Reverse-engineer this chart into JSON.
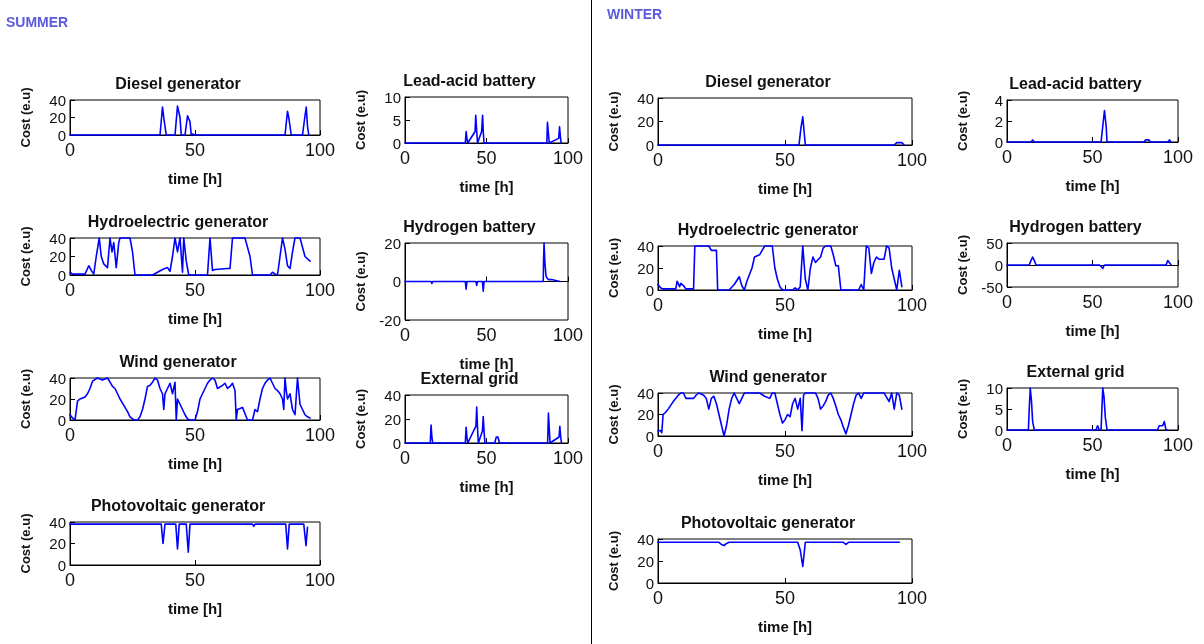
{
  "chart_data": [
    {
      "type": "line",
      "title": "Diesel generator",
      "xlabel": "time [h]",
      "ylabel": "Cost (e.u)",
      "annotations": [
        "SUMMER"
      ],
      "color": "#0000ff",
      "xlim": [
        0,
        100
      ],
      "xticks": [
        0,
        50,
        100
      ],
      "ylim": [
        0,
        40
      ],
      "yticks": [
        0,
        20,
        40
      ],
      "x": [
        0,
        36,
        37,
        37.5,
        38.5,
        42,
        43,
        44,
        44.5,
        46,
        47,
        48,
        48.5,
        49,
        50,
        86,
        87,
        87.5,
        88.5,
        93,
        94,
        94.5,
        95,
        95.5
      ],
      "values": [
        0,
        0,
        32,
        20,
        0,
        0,
        33,
        20,
        0,
        0,
        22,
        15,
        0,
        1,
        0,
        0,
        27,
        20,
        0,
        0,
        22,
        32,
        10,
        0
      ]
    },
    {
      "type": "line",
      "title": "Lead-acid battery",
      "xlabel": "time [h]",
      "ylabel": "Cost (e.u)",
      "color": "#0000ff",
      "xlim": [
        0,
        100
      ],
      "xticks": [
        0,
        50,
        100
      ],
      "ylim": [
        0,
        10
      ],
      "yticks": [
        0,
        5,
        10
      ],
      "x": [
        0,
        37,
        37.5,
        38,
        38.5,
        43,
        43.4,
        44,
        44.5,
        47,
        47.6,
        48,
        48.5,
        87,
        87.4,
        88,
        88.5,
        94.3,
        94.8,
        95.3,
        95.8
      ],
      "values": [
        0,
        0,
        2.5,
        1,
        0,
        2.5,
        6,
        2.5,
        0,
        2.5,
        6,
        2.5,
        0,
        0,
        4.5,
        2,
        0,
        1,
        3.5,
        1.5,
        0
      ]
    },
    {
      "type": "line",
      "title": "Hydroelectric generator",
      "xlabel": "time [h]",
      "ylabel": "Cost (e.u)",
      "color": "#0000ff",
      "xlim": [
        0,
        100
      ],
      "xticks": [
        0,
        50,
        100
      ],
      "ylim": [
        0,
        40
      ],
      "yticks": [
        0,
        20,
        40
      ],
      "x": [
        0,
        1,
        6,
        7.5,
        8.5,
        9.5,
        10.5,
        11.7,
        12.5,
        13.5,
        15,
        16,
        16.8,
        17.5,
        18.5,
        19.5,
        20,
        24,
        25,
        26,
        33,
        37,
        39,
        40,
        41,
        42,
        43,
        44,
        45,
        45.5,
        46.5,
        47.5,
        55,
        56,
        57,
        58,
        63,
        64,
        65,
        66,
        70,
        71,
        72,
        73,
        80,
        81,
        82,
        83,
        84,
        85,
        86,
        87,
        88,
        89,
        90,
        92,
        93,
        94,
        96
      ],
      "values": [
        3,
        1,
        1,
        10,
        5,
        1,
        20,
        40,
        20,
        12,
        8,
        40,
        25,
        35,
        8,
        35,
        40,
        40,
        25,
        0,
        0,
        6,
        8,
        4,
        20,
        40,
        25,
        40,
        3,
        40,
        15,
        0,
        0,
        40,
        5,
        6,
        7,
        7,
        40,
        40,
        40,
        30,
        20,
        0,
        0,
        3,
        1,
        0,
        20,
        40,
        28,
        10,
        7,
        25,
        40,
        40,
        30,
        20,
        15
      ]
    },
    {
      "type": "line",
      "title": "Hydrogen battery",
      "xlabel": "time [h]",
      "ylabel": "Cost (e.u)",
      "color": "#0000ff",
      "xlim": [
        0,
        100
      ],
      "xticks": [
        0,
        50,
        100
      ],
      "ylim": [
        -20,
        20
      ],
      "yticks": [
        -20,
        0,
        20
      ],
      "x": [
        0,
        16,
        16.5,
        17,
        37,
        37.5,
        38,
        43.5,
        44,
        44.5,
        47.5,
        48,
        48.5,
        84.8,
        85,
        85.3,
        85.8,
        86.5,
        87,
        88,
        90,
        95
      ],
      "values": [
        0,
        0,
        -1,
        0,
        0,
        -4,
        0,
        0,
        -2,
        0,
        0,
        -5,
        0,
        0,
        10,
        20,
        10,
        3,
        2,
        1,
        1,
        0
      ]
    },
    {
      "type": "line",
      "title": "Wind generator",
      "xlabel": "time [h]",
      "ylabel": "Cost (e.u)",
      "color": "#0000ff",
      "xlim": [
        0,
        100
      ],
      "xticks": [
        0,
        50,
        100
      ],
      "ylim": [
        0,
        40
      ],
      "yticks": [
        0,
        20,
        40
      ],
      "x": [
        0,
        1,
        2,
        3,
        4,
        6,
        7,
        8,
        9,
        11,
        13,
        15,
        16,
        17,
        18,
        19,
        20,
        21,
        22,
        23,
        24,
        25,
        26,
        27,
        28,
        29,
        30,
        31,
        32,
        33,
        34,
        35,
        36,
        37,
        37.5,
        38,
        39,
        40,
        41,
        42,
        42.5,
        43,
        44,
        45,
        46,
        47,
        48,
        50,
        51,
        52,
        53,
        54,
        55,
        56,
        57,
        58,
        59,
        61,
        62,
        63,
        64,
        65,
        66,
        66.5,
        67,
        69,
        70,
        71,
        73,
        74,
        75,
        76,
        77,
        78,
        79,
        80,
        81,
        82,
        83,
        84,
        85,
        85.5,
        86,
        86.5,
        87,
        88,
        89,
        90,
        91,
        92,
        93,
        94,
        95,
        96
      ],
      "values": [
        5,
        2,
        0,
        18,
        20,
        22,
        25,
        30,
        37,
        40,
        38,
        40,
        36,
        32,
        30,
        25,
        20,
        16,
        12,
        8,
        3,
        1,
        0,
        0,
        3,
        10,
        20,
        32,
        33,
        36,
        40,
        38,
        30,
        25,
        10,
        25,
        30,
        35,
        25,
        36,
        0,
        20,
        15,
        10,
        5,
        1,
        0,
        0,
        8,
        20,
        25,
        30,
        35,
        38,
        40,
        38,
        30,
        33,
        35,
        30,
        32,
        35,
        28,
        0,
        10,
        12,
        6,
        0,
        0,
        10,
        8,
        20,
        30,
        35,
        38,
        40,
        35,
        30,
        28,
        25,
        20,
        10,
        40,
        28,
        20,
        25,
        10,
        5,
        40,
        15,
        10,
        5,
        3,
        2
      ]
    },
    {
      "type": "line",
      "title": "External grid",
      "xlabel": "time [h]",
      "ylabel": "Cost (e.u)",
      "color": "#0000ff",
      "xlim": [
        0,
        100
      ],
      "xticks": [
        0,
        50,
        100
      ],
      "ylim": [
        0,
        40
      ],
      "yticks": [
        0,
        20,
        40
      ],
      "x": [
        0,
        15.5,
        16,
        16.5,
        17,
        37,
        37.5,
        38,
        38.5,
        43.5,
        44,
        44.5,
        45,
        47.5,
        48,
        48.5,
        49,
        55,
        56,
        57,
        58,
        87.5,
        88,
        88.5,
        89,
        94.5,
        95,
        95.5,
        96
      ],
      "values": [
        0,
        0,
        15,
        5,
        0,
        0,
        13,
        5,
        0,
        14,
        30,
        12,
        0,
        10,
        22,
        10,
        0,
        0,
        5,
        5,
        0,
        0,
        25,
        12,
        0,
        5,
        14,
        5,
        0
      ]
    },
    {
      "type": "line",
      "title": "Photovoltaic generator",
      "xlabel": "time [h]",
      "ylabel": "Cost (e.u)",
      "color": "#0000ff",
      "xlim": [
        0,
        100
      ],
      "xticks": [
        0,
        50,
        100
      ],
      "ylim": [
        0,
        40
      ],
      "yticks": [
        0,
        20,
        40
      ],
      "x": [
        0,
        36.5,
        37.2,
        38,
        42.3,
        43,
        43.7,
        46.5,
        47.3,
        48,
        73,
        73.5,
        74,
        86.3,
        87,
        87.7,
        93.5,
        94.4,
        95
      ],
      "values": [
        38,
        38,
        20,
        38,
        38,
        15,
        38,
        38,
        12,
        38,
        38,
        36,
        38,
        38,
        15,
        38,
        38,
        18,
        35
      ]
    },
    {
      "type": "line",
      "title": "Diesel generator",
      "xlabel": "time [h]",
      "ylabel": "Cost (e.u)",
      "annotations": [
        "WINTER"
      ],
      "color": "#0000ff",
      "xlim": [
        0,
        100
      ],
      "xticks": [
        0,
        50,
        100
      ],
      "ylim": [
        0,
        40
      ],
      "yticks": [
        0,
        20,
        40
      ],
      "x": [
        0,
        55.5,
        56.3,
        57,
        58,
        93,
        94,
        96,
        97
      ],
      "values": [
        0,
        0,
        15,
        24,
        0,
        0,
        2,
        2,
        0
      ]
    },
    {
      "type": "line",
      "title": "Lead-acid battery",
      "xlabel": "time [h]",
      "ylabel": "Cost (e.u)",
      "color": "#0000ff",
      "xlim": [
        0,
        100
      ],
      "xticks": [
        0,
        50,
        100
      ],
      "ylim": [
        0,
        4
      ],
      "yticks": [
        0,
        2,
        4
      ],
      "x": [
        0,
        14,
        15,
        16,
        55,
        56,
        57,
        58,
        58.5,
        80,
        81,
        83,
        84,
        94,
        95,
        96
      ],
      "values": [
        0,
        0,
        0.2,
        0,
        0,
        1.5,
        3,
        1.5,
        0,
        0,
        0.2,
        0.2,
        0,
        0,
        0.2,
        0
      ]
    },
    {
      "type": "line",
      "title": "Hydroelectric generator",
      "xlabel": "time [h]",
      "ylabel": "Cost (e.u)",
      "color": "#0000ff",
      "xlim": [
        0,
        100
      ],
      "xticks": [
        0,
        50,
        100
      ],
      "ylim": [
        0,
        40
      ],
      "yticks": [
        0,
        20,
        40
      ],
      "x": [
        0,
        1,
        2,
        7,
        7.5,
        8.5,
        9,
        10,
        11,
        14,
        14.5,
        20,
        21,
        23,
        23.5,
        28,
        30,
        32,
        33,
        34,
        35,
        37,
        38,
        40,
        41,
        42,
        45,
        46,
        47,
        48,
        49,
        53,
        54,
        55,
        56,
        57,
        58,
        59,
        60,
        61,
        62,
        64,
        65,
        66,
        68,
        69,
        70,
        71,
        72,
        79,
        80,
        81,
        82,
        83,
        84,
        85,
        86,
        87,
        89,
        90,
        91,
        92,
        93,
        94,
        95,
        96
      ],
      "values": [
        5,
        2,
        1,
        1,
        8,
        3,
        6,
        4,
        1,
        1,
        40,
        40,
        36,
        36,
        0,
        0,
        5,
        12,
        4,
        0,
        8,
        20,
        30,
        32,
        36,
        40,
        40,
        20,
        10,
        3,
        0,
        0,
        2,
        0,
        3,
        40,
        10,
        0,
        20,
        30,
        25,
        30,
        38,
        40,
        40,
        32,
        22,
        22,
        0,
        0,
        5,
        0,
        40,
        38,
        15,
        25,
        30,
        28,
        28,
        40,
        38,
        20,
        10,
        0,
        18,
        3
      ]
    },
    {
      "type": "line",
      "title": "Hydrogen battery",
      "xlabel": "time [h]",
      "ylabel": "Cost (e.u)",
      "color": "#0000ff",
      "xlim": [
        0,
        100
      ],
      "xticks": [
        0,
        50,
        100
      ],
      "ylim": [
        -50,
        50
      ],
      "yticks": [
        -50,
        0,
        50
      ],
      "x": [
        0,
        13,
        14,
        15,
        16,
        17,
        54,
        55,
        56,
        57,
        93,
        94,
        95,
        96
      ],
      "values": [
        0,
        0,
        10,
        18,
        10,
        0,
        0,
        -3,
        -8,
        0,
        0,
        10,
        5,
        0
      ]
    },
    {
      "type": "line",
      "title": "Wind generator",
      "xlabel": "time [h]",
      "ylabel": "Cost (e.u)",
      "color": "#0000ff",
      "xlim": [
        0,
        100
      ],
      "xticks": [
        0,
        50,
        100
      ],
      "ylim": [
        0,
        40
      ],
      "yticks": [
        0,
        20,
        40
      ],
      "x": [
        0,
        1,
        1.5,
        2,
        3,
        4,
        6,
        8,
        9,
        10,
        11,
        14,
        15,
        16,
        18,
        19,
        20,
        21,
        22,
        23,
        24,
        25,
        26,
        27,
        28,
        29,
        30,
        31,
        32,
        33,
        34,
        40,
        42,
        44,
        45,
        46,
        47,
        48,
        49,
        50,
        51,
        52,
        53,
        54,
        55,
        56,
        56.7,
        57.3,
        58,
        62,
        63,
        64,
        65,
        66,
        67,
        68,
        69,
        70,
        71,
        72,
        73,
        74,
        75,
        76,
        77,
        78,
        79,
        80,
        81,
        89,
        90,
        91,
        92,
        93,
        94,
        95,
        96
      ],
      "values": [
        5,
        5,
        3,
        20,
        22,
        25,
        32,
        38,
        40,
        40,
        35,
        35,
        38,
        40,
        38,
        35,
        25,
        35,
        37,
        30,
        20,
        10,
        0,
        10,
        25,
        35,
        40,
        35,
        30,
        35,
        40,
        40,
        37,
        35,
        40,
        40,
        30,
        20,
        12,
        15,
        20,
        18,
        30,
        35,
        25,
        35,
        5,
        38,
        40,
        40,
        35,
        25,
        28,
        32,
        38,
        40,
        35,
        28,
        20,
        15,
        8,
        2,
        10,
        20,
        30,
        38,
        40,
        35,
        40,
        40,
        36,
        32,
        40,
        25,
        40,
        38,
        25
      ]
    },
    {
      "type": "line",
      "title": "External grid",
      "xlabel": "time [h]",
      "ylabel": "Cost (e.u)",
      "color": "#0000ff",
      "xlim": [
        0,
        100
      ],
      "xticks": [
        0,
        50,
        100
      ],
      "ylim": [
        0,
        10
      ],
      "yticks": [
        0,
        5,
        10
      ],
      "x": [
        0,
        12.5,
        13,
        13.6,
        14.3,
        15,
        16,
        52,
        53,
        54,
        55,
        55.5,
        56,
        56.7,
        57.5,
        58.5,
        88,
        89,
        91,
        92,
        93,
        94
      ],
      "values": [
        0,
        0,
        5,
        10,
        7,
        2,
        0,
        0,
        1,
        0,
        0,
        5,
        10,
        8,
        3,
        0,
        0,
        1,
        1,
        2,
        0,
        0
      ]
    },
    {
      "type": "line",
      "title": "Photovoltaic generator",
      "xlabel": "time [h]",
      "ylabel": "Cost (e.u)",
      "color": "#0000ff",
      "xlim": [
        0,
        100
      ],
      "xticks": [
        0,
        50,
        100
      ],
      "ylim": [
        0,
        40
      ],
      "yticks": [
        0,
        20,
        40
      ],
      "x": [
        0,
        24,
        25,
        26,
        27,
        28,
        55,
        56,
        57,
        58,
        73,
        74,
        75,
        95
      ],
      "values": [
        37,
        37,
        35,
        34,
        36,
        37,
        37,
        30,
        15,
        37,
        37,
        35,
        37,
        37
      ]
    }
  ]
}
